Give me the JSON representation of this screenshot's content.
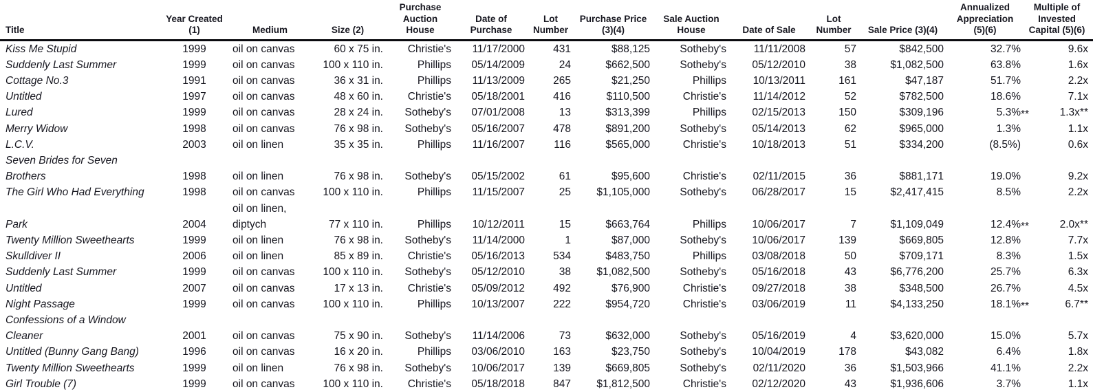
{
  "table": {
    "headers": [
      {
        "key": "title",
        "label": "Title"
      },
      {
        "key": "year",
        "label": "Year Created\n(1)"
      },
      {
        "key": "medium",
        "label": "Medium"
      },
      {
        "key": "size",
        "label": "Size (2)"
      },
      {
        "key": "purchase_house",
        "label": "Purchase\nAuction House"
      },
      {
        "key": "purchase_date",
        "label": "Date of\nPurchase"
      },
      {
        "key": "purchase_lot",
        "label": "Lot\nNumber"
      },
      {
        "key": "purchase_price",
        "label": "Purchase Price\n(3)(4)"
      },
      {
        "key": "sale_house",
        "label": "Sale Auction\nHouse"
      },
      {
        "key": "sale_date",
        "label": "Date of Sale"
      },
      {
        "key": "sale_lot",
        "label": "Lot\nNumber"
      },
      {
        "key": "sale_price",
        "label": "Sale Price (3)(4)"
      },
      {
        "key": "appreciation",
        "label": "Annualized\nAppreciation\n(5)(6)"
      },
      {
        "key": "multiple",
        "label": "Multiple of\nInvested\nCapital (5)(6)"
      }
    ],
    "rows": [
      {
        "title": "Kiss Me Stupid",
        "year": "1999",
        "medium": "oil on canvas",
        "size": "60 x 75 in.",
        "purchase_house": "Christie's",
        "purchase_date": "11/17/2000",
        "purchase_lot": "431",
        "purchase_price": "$88,125",
        "sale_house": "Sotheby's",
        "sale_date": "11/11/2008",
        "sale_lot": "57",
        "sale_price": "$842,500",
        "appreciation": "32.7%",
        "multiple": "9.6x"
      },
      {
        "title": "Suddenly Last Summer",
        "year": "1999",
        "medium": "oil on canvas",
        "size": "100 x 110 in.",
        "purchase_house": "Phillips",
        "purchase_date": "05/14/2009",
        "purchase_lot": "24",
        "purchase_price": "$662,500",
        "sale_house": "Sotheby's",
        "sale_date": "05/12/2010",
        "sale_lot": "38",
        "sale_price": "$1,082,500",
        "appreciation": "63.8%",
        "multiple": "1.6x"
      },
      {
        "title": "Cottage No.3",
        "year": "1991",
        "medium": "oil on canvas",
        "size": "36 x 31 in.",
        "purchase_house": "Phillips",
        "purchase_date": "11/13/2009",
        "purchase_lot": "265",
        "purchase_price": "$21,250",
        "sale_house": "Phillips",
        "sale_date": "10/13/2011",
        "sale_lot": "161",
        "sale_price": "$47,187",
        "appreciation": "51.7%",
        "multiple": "2.2x"
      },
      {
        "title": "Untitled",
        "year": "1997",
        "medium": "oil on canvas",
        "size": "48 x 60 in.",
        "purchase_house": "Christie's",
        "purchase_date": "05/18/2001",
        "purchase_lot": "416",
        "purchase_price": "$110,500",
        "sale_house": "Christie's",
        "sale_date": "11/14/2012",
        "sale_lot": "52",
        "sale_price": "$782,500",
        "appreciation": "18.6%",
        "multiple": "7.1x"
      },
      {
        "title": "Lured",
        "year": "1999",
        "medium": "oil on canvas",
        "size": "28 x 24 in.",
        "purchase_house": "Sotheby's",
        "purchase_date": "07/01/2008",
        "purchase_lot": "13",
        "purchase_price": "$313,399",
        "sale_house": "Phillips",
        "sale_date": "02/15/2013",
        "sale_lot": "150",
        "sale_price": "$309,196",
        "appreciation": "5.3%**",
        "multiple": "1.3x**"
      },
      {
        "title": "Merry Widow",
        "year": "1998",
        "medium": "oil on canvas",
        "size": "76 x 98 in.",
        "purchase_house": "Sotheby's",
        "purchase_date": "05/16/2007",
        "purchase_lot": "478",
        "purchase_price": "$891,200",
        "sale_house": "Sotheby's",
        "sale_date": "05/14/2013",
        "sale_lot": "62",
        "sale_price": "$965,000",
        "appreciation": "1.3%",
        "multiple": "1.1x"
      },
      {
        "title": "L.C.V.",
        "year": "2003",
        "medium": "oil on linen",
        "size": "35 x 35 in.",
        "purchase_house": "Phillips",
        "purchase_date": "11/16/2007",
        "purchase_lot": "116",
        "purchase_price": "$565,000",
        "sale_house": "Christie's",
        "sale_date": "10/18/2013",
        "sale_lot": "51",
        "sale_price": "$334,200",
        "appreciation": "(8.5%)",
        "multiple": "0.6x"
      },
      {
        "title": "Seven Brides for Seven\nBrothers",
        "year": "1998",
        "medium": "oil on linen",
        "size": "76 x 98 in.",
        "purchase_house": "Sotheby's",
        "purchase_date": "05/15/2002",
        "purchase_lot": "61",
        "purchase_price": "$95,600",
        "sale_house": "Christie's",
        "sale_date": "02/11/2015",
        "sale_lot": "36",
        "sale_price": "$881,171",
        "appreciation": "19.0%",
        "multiple": "9.2x"
      },
      {
        "title": "The Girl Who Had Everything",
        "year": "1998",
        "medium": "oil on canvas",
        "size": "100 x 110 in.",
        "purchase_house": "Phillips",
        "purchase_date": "11/15/2007",
        "purchase_lot": "25",
        "purchase_price": "$1,105,000",
        "sale_house": "Sotheby's",
        "sale_date": "06/28/2017",
        "sale_lot": "15",
        "sale_price": "$2,417,415",
        "appreciation": "8.5%",
        "multiple": "2.2x"
      },
      {
        "title": "Park",
        "year": "2004",
        "medium": "oil on linen,\ndiptych",
        "size": "77 x 110 in.",
        "purchase_house": "Phillips",
        "purchase_date": "10/12/2011",
        "purchase_lot": "15",
        "purchase_price": "$663,764",
        "sale_house": "Phillips",
        "sale_date": "10/06/2017",
        "sale_lot": "7",
        "sale_price": "$1,109,049",
        "appreciation": "12.4%**",
        "multiple": "2.0x**"
      },
      {
        "title": "Twenty Million Sweethearts",
        "year": "1999",
        "medium": "oil on linen",
        "size": "76 x 98 in.",
        "purchase_house": "Sotheby's",
        "purchase_date": "11/14/2000",
        "purchase_lot": "1",
        "purchase_price": "$87,000",
        "sale_house": "Sotheby's",
        "sale_date": "10/06/2017",
        "sale_lot": "139",
        "sale_price": "$669,805",
        "appreciation": "12.8%",
        "multiple": "7.7x"
      },
      {
        "title": "Skulldiver II",
        "year": "2006",
        "medium": "oil on linen",
        "size": "85 x 89 in.",
        "purchase_house": "Christie's",
        "purchase_date": "05/16/2013",
        "purchase_lot": "534",
        "purchase_price": "$483,750",
        "sale_house": "Phillips",
        "sale_date": "03/08/2018",
        "sale_lot": "50",
        "sale_price": "$709,171",
        "appreciation": "8.3%",
        "multiple": "1.5x"
      },
      {
        "title": "Suddenly Last Summer",
        "year": "1999",
        "medium": "oil on canvas",
        "size": "100 x 110 in.",
        "purchase_house": "Sotheby's",
        "purchase_date": "05/12/2010",
        "purchase_lot": "38",
        "purchase_price": "$1,082,500",
        "sale_house": "Sotheby's",
        "sale_date": "05/16/2018",
        "sale_lot": "43",
        "sale_price": "$6,776,200",
        "appreciation": "25.7%",
        "multiple": "6.3x"
      },
      {
        "title": "Untitled",
        "year": "2007",
        "medium": "oil on canvas",
        "size": "17 x 13 in.",
        "purchase_house": "Christie's",
        "purchase_date": "05/09/2012",
        "purchase_lot": "492",
        "purchase_price": "$76,900",
        "sale_house": "Christie's",
        "sale_date": "09/27/2018",
        "sale_lot": "38",
        "sale_price": "$348,500",
        "appreciation": "26.7%",
        "multiple": "4.5x"
      },
      {
        "title": "Night Passage",
        "year": "1999",
        "medium": "oil on canvas",
        "size": "100 x 110 in.",
        "purchase_house": "Phillips",
        "purchase_date": "10/13/2007",
        "purchase_lot": "222",
        "purchase_price": "$954,720",
        "sale_house": "Christie's",
        "sale_date": "03/06/2019",
        "sale_lot": "11",
        "sale_price": "$4,133,250",
        "appreciation": "18.1%**",
        "multiple": "6.7**"
      },
      {
        "title": "Confessions of a Window\nCleaner",
        "year": "2001",
        "medium": "oil on canvas",
        "size": "75 x 90 in.",
        "purchase_house": "Sotheby's",
        "purchase_date": "11/14/2006",
        "purchase_lot": "73",
        "purchase_price": "$632,000",
        "sale_house": "Sotheby's",
        "sale_date": "05/16/2019",
        "sale_lot": "4",
        "sale_price": "$3,620,000",
        "appreciation": "15.0%",
        "multiple": "5.7x"
      },
      {
        "title": "Untitled (Bunny Gang Bang)",
        "year": "1996",
        "medium": "oil on canvas",
        "size": "16 x 20 in.",
        "purchase_house": "Phillips",
        "purchase_date": "03/06/2010",
        "purchase_lot": "163",
        "purchase_price": "$23,750",
        "sale_house": "Sotheby's",
        "sale_date": "10/04/2019",
        "sale_lot": "178",
        "sale_price": "$43,082",
        "appreciation": "6.4%",
        "multiple": "1.8x"
      },
      {
        "title": "Twenty Million Sweethearts",
        "year": "1999",
        "medium": "oil on linen",
        "size": "76 x 98 in.",
        "purchase_house": "Sotheby's",
        "purchase_date": "10/06/2017",
        "purchase_lot": "139",
        "purchase_price": "$669,805",
        "sale_house": "Sotheby's",
        "sale_date": "02/11/2020",
        "sale_lot": "36",
        "sale_price": "$1,503,966",
        "appreciation": "41.1%",
        "multiple": "2.2x"
      },
      {
        "title": "Girl Trouble (7)",
        "year": "1999",
        "medium": "oil on canvas",
        "size": "100 x 110 in.",
        "purchase_house": "Christie's",
        "purchase_date": "05/18/2018",
        "purchase_lot": "847",
        "purchase_price": "$1,812,500",
        "sale_house": "Christie's",
        "sale_date": "02/12/2020",
        "sale_lot": "43",
        "sale_price": "$1,936,606",
        "appreciation": "3.7%",
        "multiple": "1.1x"
      }
    ]
  },
  "colors": {
    "text": "#16161f",
    "header_rule": "#0a0a0f",
    "background": "#ffffff"
  }
}
